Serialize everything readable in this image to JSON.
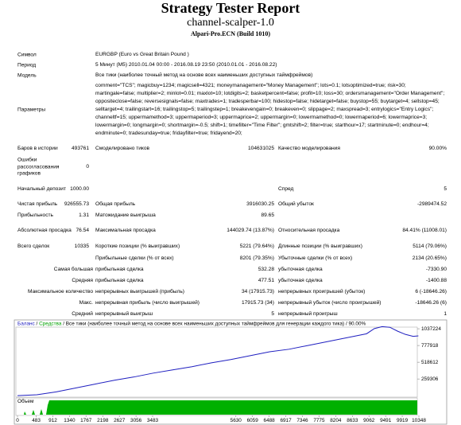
{
  "header": {
    "title": "Strategy Tester Report",
    "subtitle": "channel-scalper-1.0",
    "server": "Alpari-Pro.ECN (Build 1010)"
  },
  "info": {
    "rows": [
      {
        "label": "Символ",
        "value": "EURGBP (Euro vs Great Britain Pound )"
      },
      {
        "label": "Период",
        "value": "5 Минут (M5) 2010.01.04 00:00 - 2016.08.19 23:50 (2010.01.01 - 2016.08.22)"
      },
      {
        "label": "Модель",
        "value": "Все тики (наиболее точный метод на основе всех наименьших доступных таймфреймов)"
      },
      {
        "label": "Параметры",
        "value": "comment=\"TCS\"; magicbuy=1234; magicsell=4321; moneymanagement=\"Money Management\"; lots=0.1; lotsoptimized=true; risk=30; martingale=false; multiplier=2; minlot=0.01; maxlot=10; lotdigits=2; basketpercent=false; profit=10; loss=30; ordersmanagement=\"Order Management\"; oppositeclose=false; reversesignals=false; maxtrades=1; tradesperbar=100; hidestop=false; hidetarget=false; buystop=55; buytarget=4; sellstop=45; selltarget=4; trailingstart=16; trailingstop=5; trailingstep=1; breakevengain=0; breakeven=0; slippage=2; maxspread=3; entrylogics=\"Entry Logics\"; channeltf=15; uppermamethod=3; uppermaperiod=3; uppermaprice=2; uppermargin=0; lowermamethod=0; lowermaperiod=6; lowermaprice=3; lowermargin=0; longmargin=0; shortmargin=-0.5; shift=1; timefilter=\"Time Filter\"; gmtshift=2; filter=true; starthour=17; startminute=0; endhour=4; endminute=0; tradesunday=true; fridayfilter=true; fridayend=20;"
      }
    ]
  },
  "stats": {
    "rows": [
      [
        {
          "label": "Баров в истории",
          "value": "493761"
        },
        {
          "label": "Смоделировано тиков",
          "value": "104631025"
        },
        {
          "label": "Качество моделирования",
          "value": "90.00%"
        }
      ],
      [
        {
          "label": "Ошибки рассогласования графиков",
          "value": "0"
        },
        null,
        null
      ],
      [
        {
          "label": "Начальный депозит",
          "value": "1000.00"
        },
        null,
        {
          "label": "Спред",
          "value": "5"
        }
      ],
      [
        {
          "label": "Чистая прибыль",
          "value": "926555.73"
        },
        {
          "label": "Общая прибыль",
          "value": "3916030.25"
        },
        {
          "label": "Общий убыток",
          "value": "-2989474.52"
        }
      ],
      [
        {
          "label": "Прибыльность",
          "value": "1.31"
        },
        {
          "label": "Матожидание выигрыша",
          "value": "89.65"
        },
        null
      ],
      [
        {
          "label": "Абсолютная просадка",
          "value": "76.54"
        },
        {
          "label": "Максимальная просадка",
          "value": "144029.74 (13.87%)"
        },
        {
          "label": "Относительная просадка",
          "value": "84.41% (11008.01)"
        }
      ],
      [
        {
          "label": "Всего сделок",
          "value": "10335"
        },
        {
          "label": "Короткие позиции (% выигравших)",
          "value": "5221 (79.64%)"
        },
        {
          "label": "Длинные позиции (% выигравших)",
          "value": "5114 (79.06%)"
        }
      ],
      [
        null,
        {
          "label": "Прибыльные сделки (% от всех)",
          "value": "8201 (79.35%)"
        },
        {
          "label": "Убыточные сделки (% от всех)",
          "value": "2134 (20.65%)"
        }
      ],
      [
        {
          "label": "Самая большая"
        },
        {
          "label": "прибыльная сделка",
          "value": "532.28"
        },
        {
          "label": "убыточная сделка",
          "value": "-7330.90"
        }
      ],
      [
        {
          "label": "Средняя"
        },
        {
          "label": "прибыльная сделка",
          "value": "477.51"
        },
        {
          "label": "убыточная сделка",
          "value": "-1400.88"
        }
      ],
      [
        {
          "label": "Максимальное количество"
        },
        {
          "label": "непрерывных выигрышей (прибыль)",
          "value": "34 (17915.73)"
        },
        {
          "label": "непрерывных проигрышей (убыток)",
          "value": "6 (-18646.26)"
        }
      ],
      [
        {
          "label": "Макс."
        },
        {
          "label": "непрерывная прибыль (число выигрышей)",
          "value": "17915.73 (34)"
        },
        {
          "label": "непрерывный убыток (число проигрышей)",
          "value": "-18646.26 (6)"
        }
      ],
      [
        {
          "label": "Средний"
        },
        {
          "label": "непрерывный выигрыш",
          "value": "5"
        },
        {
          "label": "непрерывный проигрыш",
          "value": "1"
        }
      ]
    ]
  },
  "chart_data": {
    "type": "line",
    "legend_separator": "/",
    "equity_label": "Средства",
    "equity_color": "#00a000",
    "model_label": "Все тики (наиболее точный метод на основе всех наименьших доступных таймфреймов для генерации каждого тика)",
    "quality": "90.00%",
    "volume_label": "Объем",
    "x": [
      0,
      500,
      1000,
      1500,
      2000,
      2500,
      3000,
      3500,
      4000,
      4500,
      5000,
      5500,
      6000,
      6500,
      7000,
      7500,
      8000,
      8500,
      9000,
      9200,
      9400,
      9600,
      9800,
      10000,
      10200,
      10335
    ],
    "series": [
      {
        "name": "Баланс",
        "color": "#1f1fc0",
        "values": [
          1000,
          15000,
          60000,
          120000,
          180000,
          240000,
          290000,
          350000,
          400000,
          450000,
          510000,
          560000,
          620000,
          680000,
          720000,
          780000,
          840000,
          900000,
          960000,
          1040000,
          1070000,
          1060000,
          1000000,
          950000,
          920000,
          927556
        ]
      }
    ],
    "xlim": [
      0,
      10348
    ],
    "xticks": [
      0,
      483,
      912,
      1340,
      1767,
      2198,
      2627,
      3056,
      3483,
      5630,
      6059,
      6488,
      6917,
      7346,
      7775,
      8204,
      8633,
      9062,
      9491,
      9919,
      10348
    ],
    "ylim": [
      -10000,
      1100000
    ],
    "yticks": [
      259306,
      518612,
      777918,
      1037224
    ]
  }
}
